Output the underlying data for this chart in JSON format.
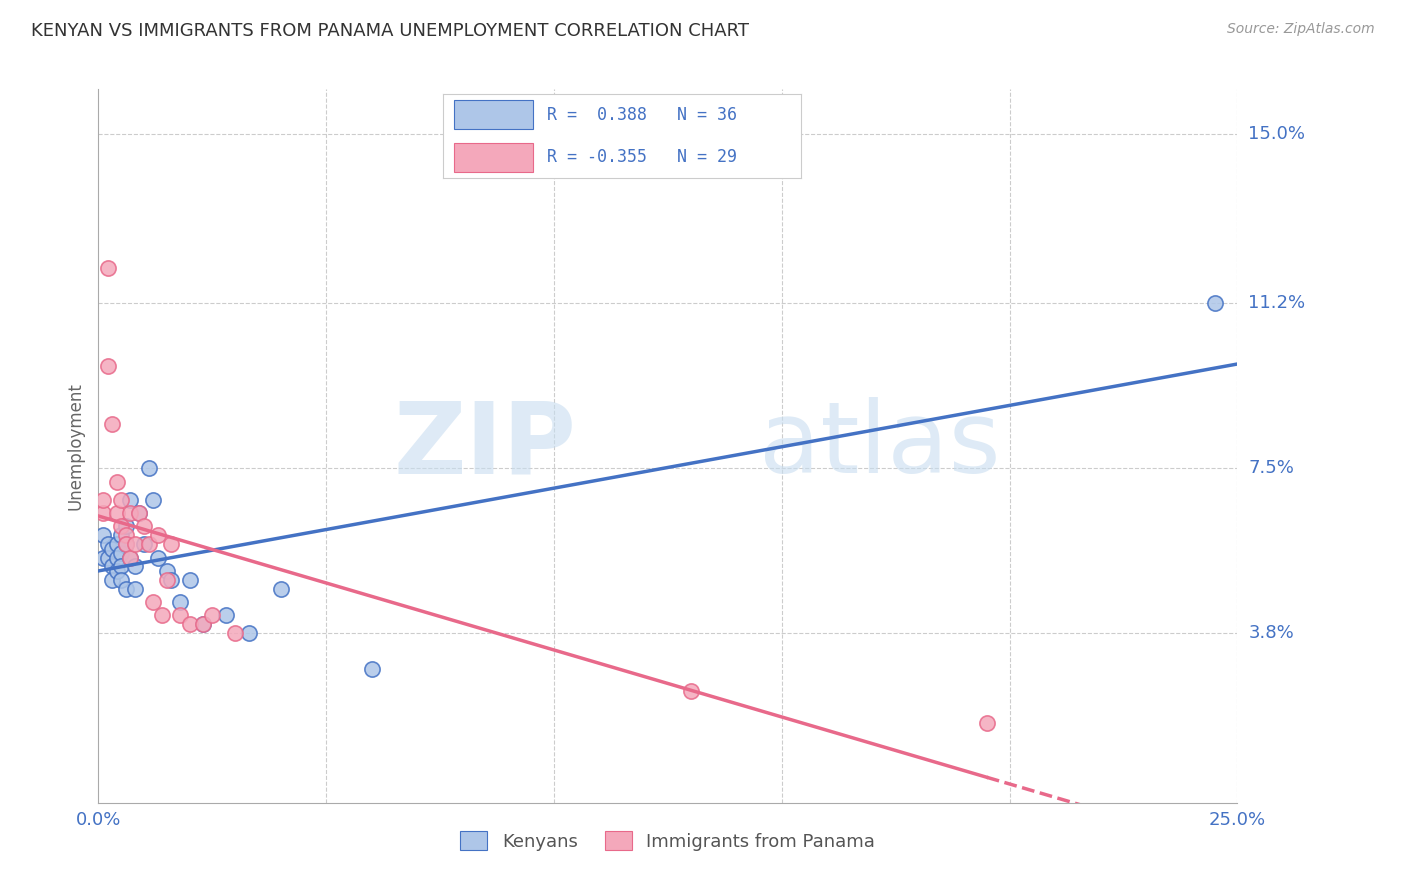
{
  "title": "KENYAN VS IMMIGRANTS FROM PANAMA UNEMPLOYMENT CORRELATION CHART",
  "source": "Source: ZipAtlas.com",
  "ylabel": "Unemployment",
  "xlim": [
    0.0,
    0.25
  ],
  "ylim": [
    0.0,
    0.16
  ],
  "ytick_labels_right": [
    "15.0%",
    "11.2%",
    "7.5%",
    "3.8%"
  ],
  "ytick_values_right": [
    0.15,
    0.112,
    0.075,
    0.038
  ],
  "kenyan_color": "#aec6e8",
  "panama_color": "#f4a8bb",
  "kenyan_line_color": "#4472c4",
  "panama_line_color": "#e8698a",
  "legend_label_1": "R =  0.388   N = 36",
  "legend_label_2": "R = -0.355   N = 29",
  "legend_labels": [
    "Kenyans",
    "Immigrants from Panama"
  ],
  "watermark_zip": "ZIP",
  "watermark_atlas": "atlas",
  "kenyan_x": [
    0.001,
    0.001,
    0.002,
    0.002,
    0.003,
    0.003,
    0.003,
    0.004,
    0.004,
    0.004,
    0.005,
    0.005,
    0.005,
    0.005,
    0.006,
    0.006,
    0.006,
    0.007,
    0.007,
    0.008,
    0.008,
    0.009,
    0.01,
    0.011,
    0.012,
    0.013,
    0.015,
    0.016,
    0.018,
    0.02,
    0.023,
    0.028,
    0.033,
    0.04,
    0.06,
    0.245
  ],
  "kenyan_y": [
    0.06,
    0.055,
    0.058,
    0.055,
    0.057,
    0.053,
    0.05,
    0.058,
    0.055,
    0.052,
    0.06,
    0.056,
    0.053,
    0.05,
    0.062,
    0.058,
    0.048,
    0.068,
    0.055,
    0.053,
    0.048,
    0.065,
    0.058,
    0.075,
    0.068,
    0.055,
    0.052,
    0.05,
    0.045,
    0.05,
    0.04,
    0.042,
    0.038,
    0.048,
    0.03,
    0.112
  ],
  "panama_x": [
    0.001,
    0.001,
    0.002,
    0.002,
    0.003,
    0.004,
    0.004,
    0.005,
    0.005,
    0.006,
    0.006,
    0.007,
    0.007,
    0.008,
    0.009,
    0.01,
    0.011,
    0.012,
    0.013,
    0.014,
    0.015,
    0.016,
    0.018,
    0.02,
    0.023,
    0.025,
    0.03,
    0.13,
    0.195
  ],
  "panama_y": [
    0.065,
    0.068,
    0.12,
    0.098,
    0.085,
    0.072,
    0.065,
    0.068,
    0.062,
    0.06,
    0.058,
    0.065,
    0.055,
    0.058,
    0.065,
    0.062,
    0.058,
    0.045,
    0.06,
    0.042,
    0.05,
    0.058,
    0.042,
    0.04,
    0.04,
    0.042,
    0.038,
    0.025,
    0.018
  ],
  "background_color": "#ffffff",
  "grid_color": "#cccccc"
}
